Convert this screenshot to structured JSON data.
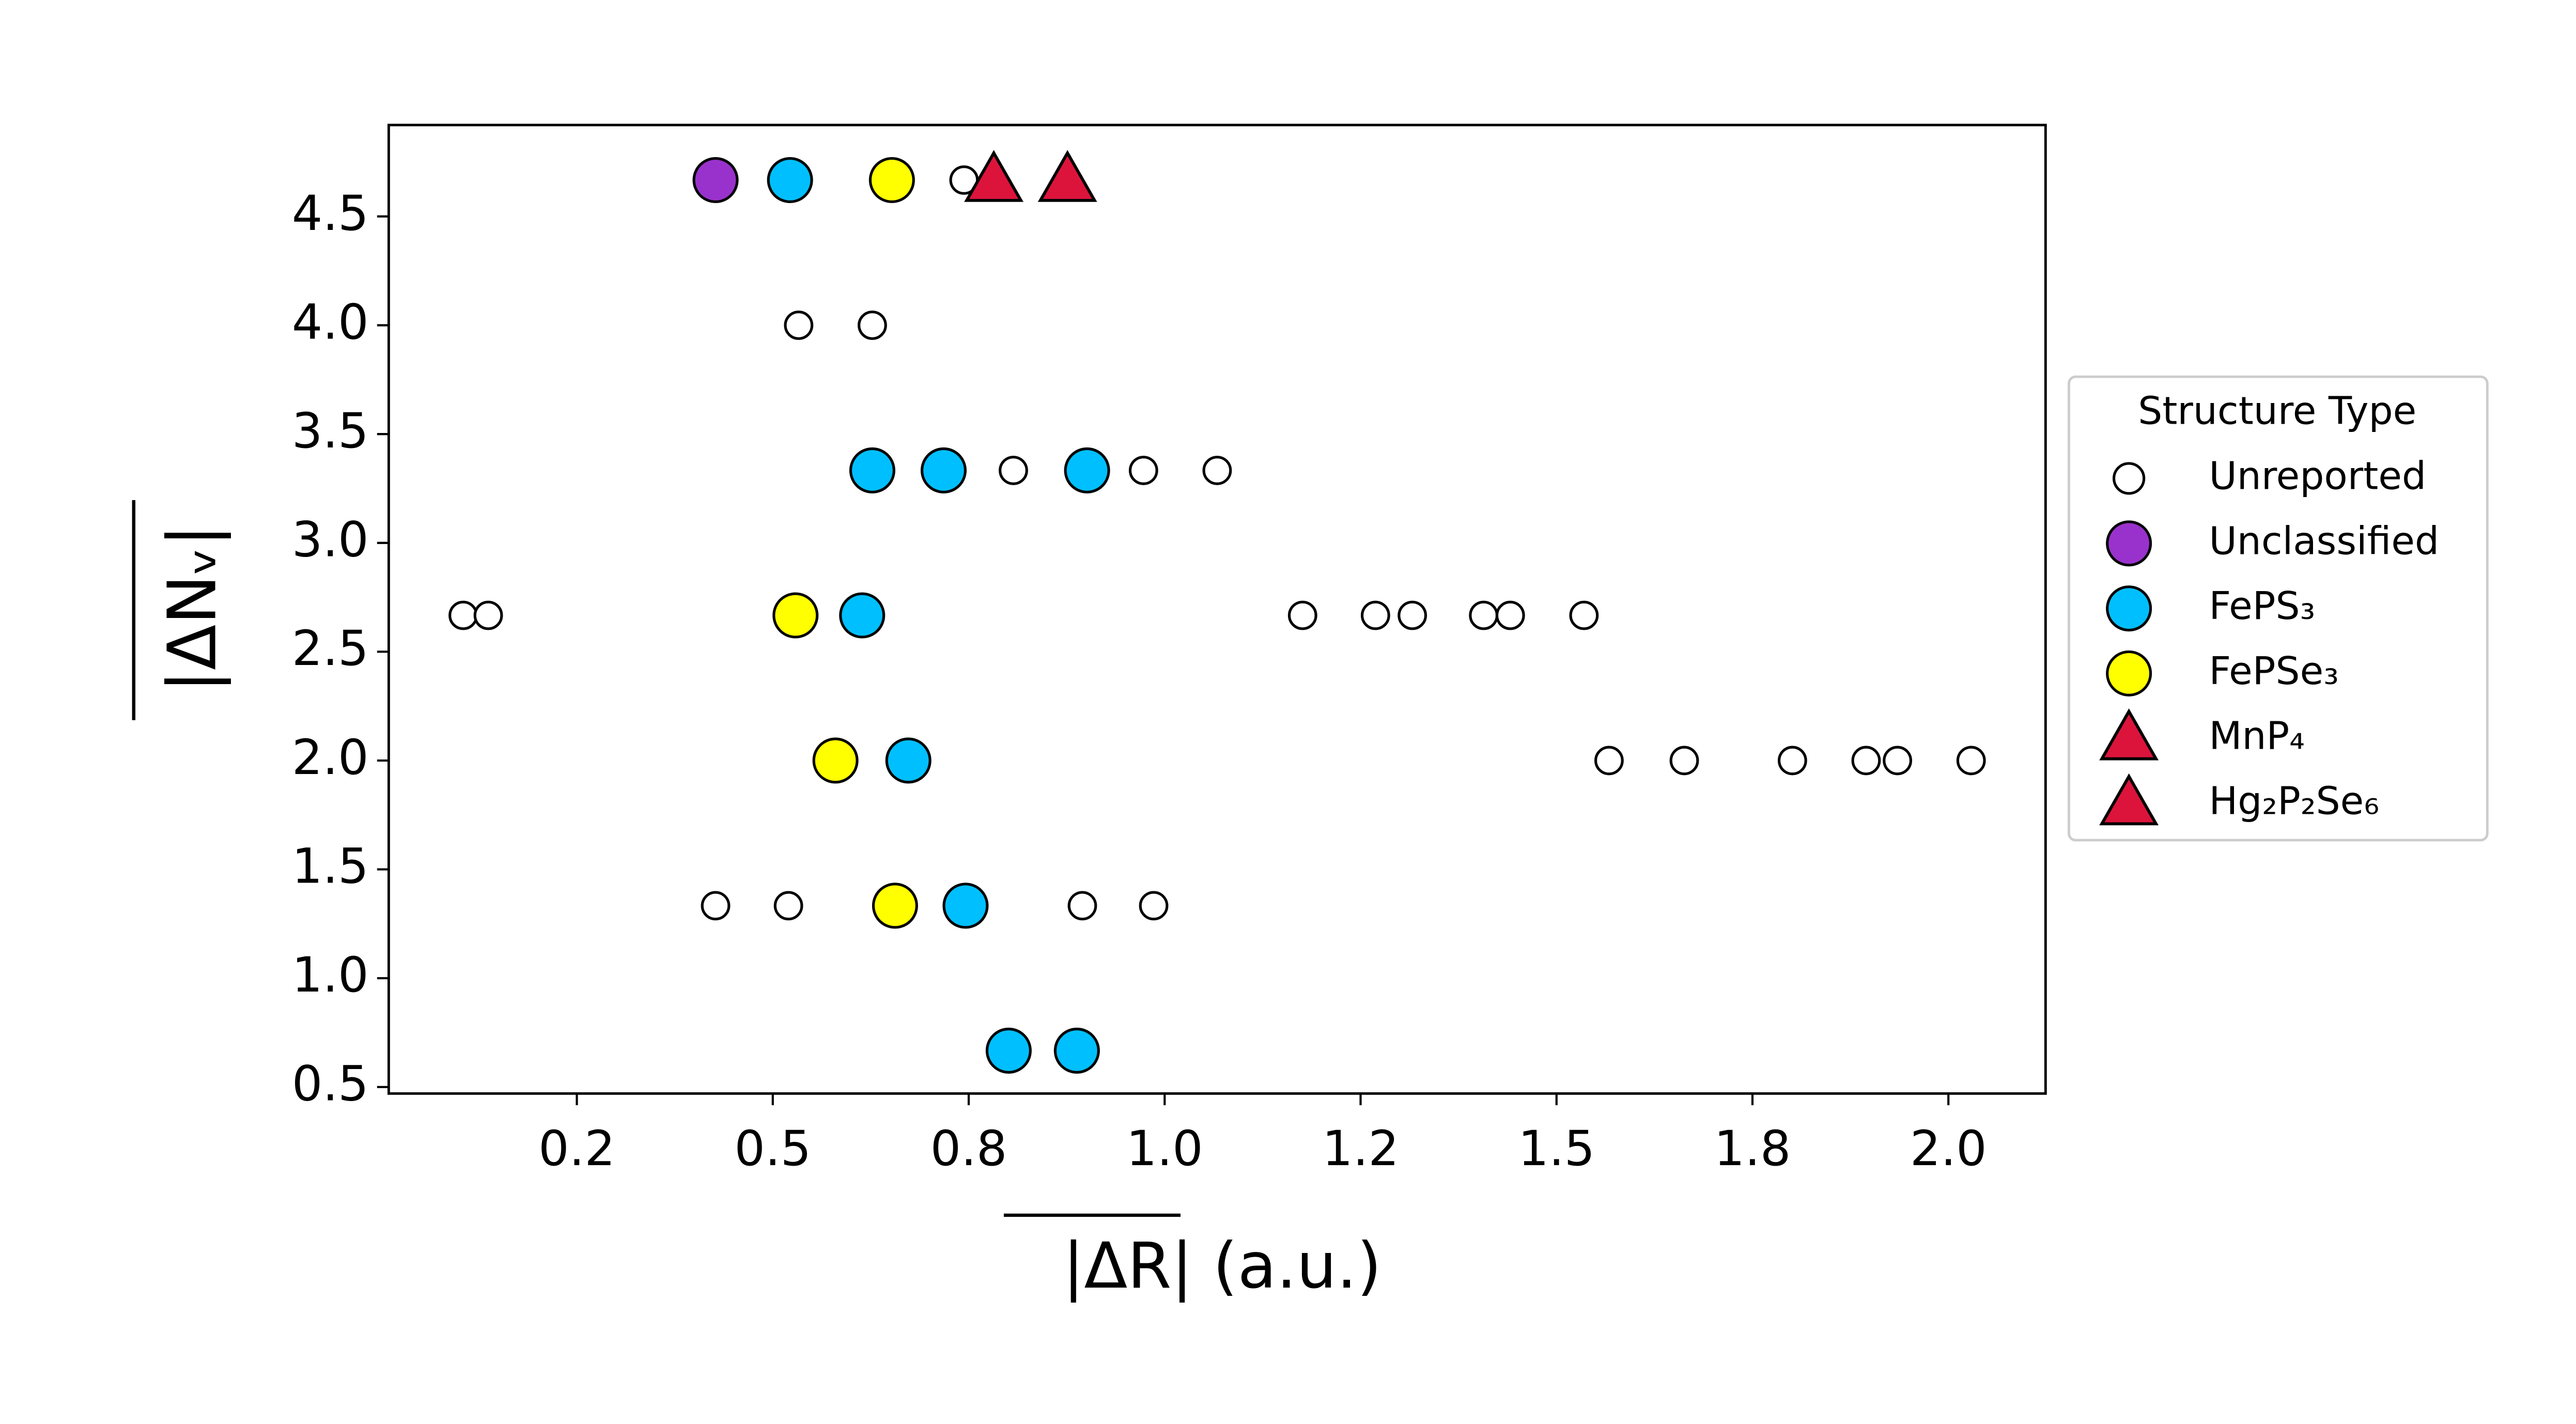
{
  "chart_data": {
    "type": "scatter",
    "x_label": "|ΔR| (a.u.)",
    "y_label": "|ΔNᵥ|",
    "xlim": [
      0.01,
      2.124
    ],
    "ylim": [
      0.47,
      4.92
    ],
    "xticks": [
      {
        "value": 0.25,
        "label": "0.2"
      },
      0.5,
      {
        "value": 0.75,
        "label": "0.8"
      },
      {
        "value": 1,
        "label": "1.0"
      },
      {
        "value": 1.25,
        "label": "1.2"
      },
      1.5,
      {
        "value": 1.75,
        "label": "1.8"
      },
      {
        "value": 2,
        "label": "2.0"
      }
    ],
    "yticks": [
      0.5,
      {
        "value": 1,
        "label": "1.0"
      },
      1.5,
      {
        "value": 2,
        "label": "2.0"
      },
      2.5,
      {
        "value": 3,
        "label": "3.0"
      },
      3.5,
      {
        "value": 4,
        "label": "4.0"
      },
      4.5
    ],
    "legend_title": "Structure Type",
    "legend_position": "outside right",
    "series": [
      {
        "name": "Unreported",
        "color": "#ffffff",
        "marker": "circle",
        "x": [
          0.744,
          0.876,
          0.533,
          0.627,
          0.807,
          0.973,
          1.067,
          0.105,
          0.137,
          0.62,
          1.176,
          1.269,
          1.316,
          1.407,
          1.441,
          1.535,
          1.567,
          1.663,
          1.801,
          1.895,
          1.935,
          2.029,
          0.427,
          0.52,
          0.895,
          0.986
        ],
        "y": [
          4.667,
          4.667,
          4.0,
          4.0,
          3.333,
          3.333,
          3.333,
          2.667,
          2.667,
          2.667,
          2.667,
          2.667,
          2.667,
          2.667,
          2.667,
          2.667,
          2.0,
          2.0,
          2.0,
          2.0,
          2.0,
          2.0,
          1.333,
          1.333,
          1.333,
          1.333
        ]
      },
      {
        "name": "Unclassified",
        "color": "#9932cc",
        "marker": "circle",
        "x": [
          0.427
        ],
        "y": [
          4.667
        ]
      },
      {
        "name": "FePS₃",
        "color": "#00bfff",
        "marker": "circle",
        "x": [
          0.522,
          0.627,
          0.718,
          0.901,
          0.614,
          0.673,
          0.746,
          0.801,
          0.888
        ],
        "y": [
          4.667,
          3.333,
          3.333,
          3.333,
          2.667,
          2.0,
          1.333,
          0.667,
          0.667
        ]
      },
      {
        "name": "FePSe₃",
        "color": "#ffff00",
        "marker": "circle",
        "x": [
          0.652,
          0.529,
          0.58,
          0.656
        ],
        "y": [
          4.667,
          2.667,
          2.0,
          1.333
        ]
      },
      {
        "name": "MnP₄",
        "color": "#dc143c",
        "marker": "triangle",
        "x": [
          0.782
        ],
        "y": [
          4.667
        ]
      },
      {
        "name": "Hg₂P₂Se₆",
        "color": "#dc143c",
        "marker": "triangle",
        "x": [
          0.876
        ],
        "y": [
          4.667
        ]
      }
    ]
  }
}
